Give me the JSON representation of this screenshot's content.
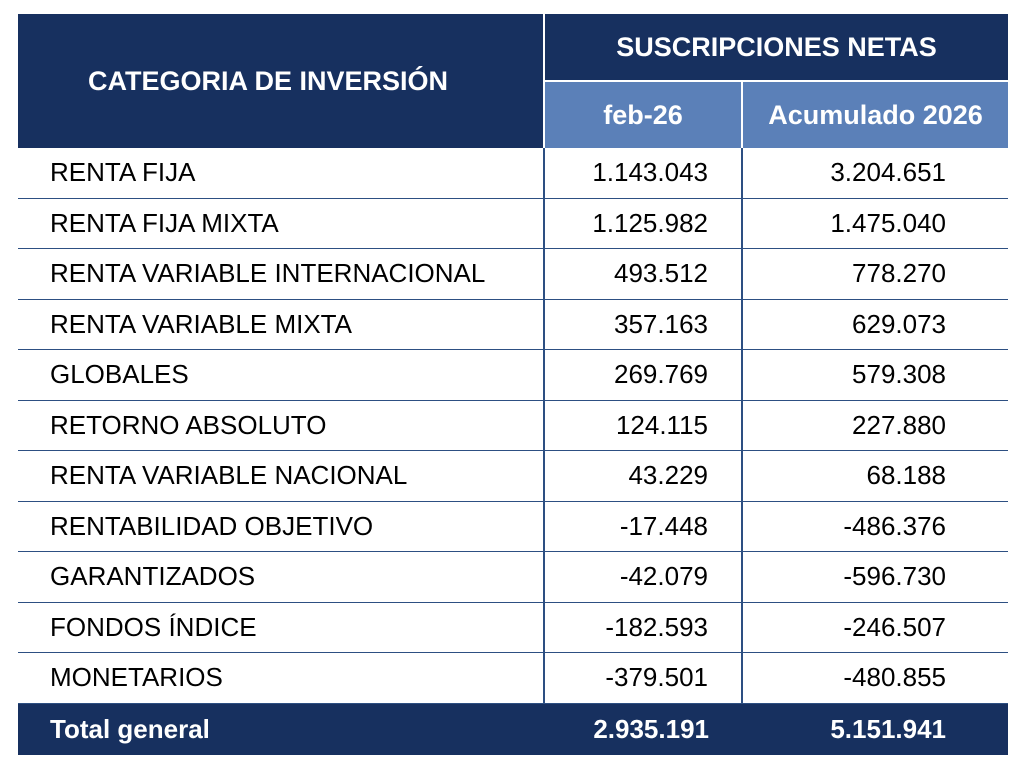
{
  "header": {
    "category": "CATEGORIA DE INVERSIÓN",
    "group": "SUSCRIPCIONES NETAS",
    "col_month": "feb-26",
    "col_ytd": "Acumulado 2026"
  },
  "rows": [
    {
      "category": "RENTA FIJA",
      "month": "1.143.043",
      "ytd": "3.204.651"
    },
    {
      "category": "RENTA FIJA MIXTA",
      "month": "1.125.982",
      "ytd": "1.475.040"
    },
    {
      "category": "RENTA VARIABLE INTERNACIONAL",
      "month": "493.512",
      "ytd": "778.270"
    },
    {
      "category": "RENTA VARIABLE MIXTA",
      "month": "357.163",
      "ytd": "629.073"
    },
    {
      "category": "GLOBALES",
      "month": "269.769",
      "ytd": "579.308"
    },
    {
      "category": "RETORNO ABSOLUTO",
      "month": "124.115",
      "ytd": "227.880"
    },
    {
      "category": "RENTA VARIABLE NACIONAL",
      "month": "43.229",
      "ytd": "68.188"
    },
    {
      "category": "RENTABILIDAD OBJETIVO",
      "month": "-17.448",
      "ytd": "-486.376"
    },
    {
      "category": "GARANTIZADOS",
      "month": "-42.079",
      "ytd": "-596.730"
    },
    {
      "category": "FONDOS ÍNDICE",
      "month": "-182.593",
      "ytd": "-246.507"
    },
    {
      "category": "MONETARIOS",
      "month": "-379.501",
      "ytd": "-480.855"
    }
  ],
  "total": {
    "category": "Total general",
    "month": "2.935.191",
    "ytd": "5.151.941"
  },
  "colors": {
    "header_dark": "#17305f",
    "header_sub": "#5b80b8",
    "grid": "#2d4f82"
  }
}
